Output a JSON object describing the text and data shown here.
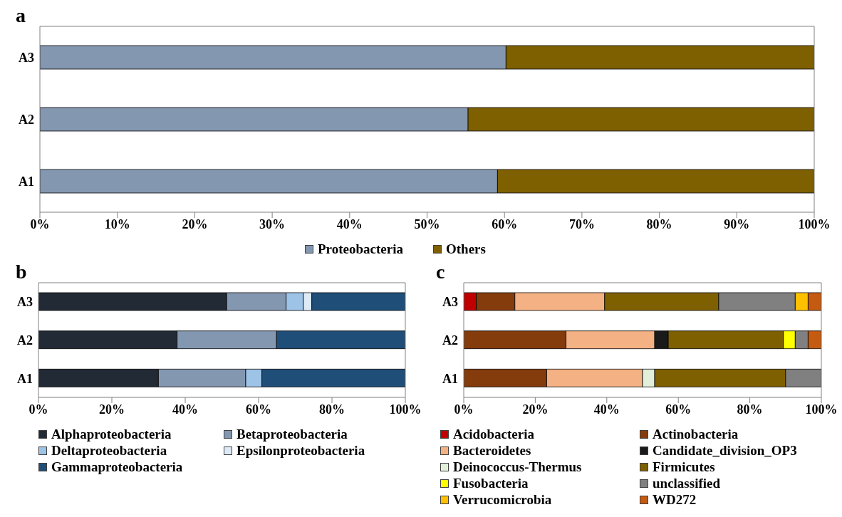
{
  "chart_data": [
    {
      "type": "bar",
      "title": "a",
      "orientation": "horizontal",
      "stacked": true,
      "categories": [
        "A3",
        "A2",
        "A1"
      ],
      "series": [
        {
          "name": "Proteobacteria",
          "color": "#8497b0",
          "values": [
            60.2,
            55.3,
            59.1
          ]
        },
        {
          "name": "Others",
          "color": "#7f6000",
          "values": [
            39.8,
            44.7,
            40.9
          ]
        }
      ],
      "xlim": [
        0,
        100
      ],
      "xticks": [
        {
          "value": 0,
          "label": "0%"
        },
        {
          "value": 10,
          "label": "10%"
        },
        {
          "value": 20,
          "label": "20%"
        },
        {
          "value": 30,
          "label": "30%"
        },
        {
          "value": 40,
          "label": "40%"
        },
        {
          "value": 50,
          "label": "50%"
        },
        {
          "value": 60,
          "label": "60%"
        },
        {
          "value": 70,
          "label": "70%"
        },
        {
          "value": 80,
          "label": "80%"
        },
        {
          "value": 90,
          "label": "90%"
        },
        {
          "value": 100,
          "label": "100%"
        }
      ],
      "grid": false,
      "legend": "bottom"
    },
    {
      "type": "bar",
      "title": "b",
      "orientation": "horizontal",
      "stacked": true,
      "categories": [
        "A3",
        "A2",
        "A1"
      ],
      "series": [
        {
          "name": "Alphaproteobacteria",
          "color": "#222a35",
          "values": [
            51.3,
            37.8,
            32.7
          ]
        },
        {
          "name": "Betaproteobacteria",
          "color": "#8497b0",
          "values": [
            16.2,
            27.1,
            23.8
          ]
        },
        {
          "name": "Deltaproteobacteria",
          "color": "#9dc3e6",
          "values": [
            4.7,
            0,
            4.4
          ]
        },
        {
          "name": "Epsilonproteobacteria",
          "color": "#deebf7",
          "values": [
            2.3,
            0,
            0
          ]
        },
        {
          "name": "Gammaproteobacteria",
          "color": "#1f4e79",
          "values": [
            25.5,
            35.1,
            39.1
          ]
        }
      ],
      "xlim": [
        0,
        100
      ],
      "xticks": [
        {
          "value": 0,
          "label": "0%"
        },
        {
          "value": 20,
          "label": "20%"
        },
        {
          "value": 40,
          "label": "40%"
        },
        {
          "value": 60,
          "label": "60%"
        },
        {
          "value": 80,
          "label": "80%"
        },
        {
          "value": 100,
          "label": "100%"
        }
      ],
      "grid": false,
      "legend": "bottom"
    },
    {
      "type": "bar",
      "title": "c",
      "orientation": "horizontal",
      "stacked": true,
      "categories": [
        "A3",
        "A2",
        "A1"
      ],
      "series": [
        {
          "name": "Acidobacteria",
          "color": "#c00000",
          "values": [
            3.5,
            0,
            0
          ]
        },
        {
          "name": "Actinobacteria",
          "color": "#843c0c",
          "values": [
            10.8,
            28.6,
            23.2
          ]
        },
        {
          "name": "Bacteroidetes",
          "color": "#f4b183",
          "values": [
            25.1,
            24.8,
            26.8
          ]
        },
        {
          "name": "Candidate_division_OP3",
          "color": "#1a1a1a",
          "values": [
            0,
            3.8,
            0
          ]
        },
        {
          "name": "Deinococcus-Thermus",
          "color": "#e2f0d9",
          "values": [
            0,
            0,
            3.4
          ]
        },
        {
          "name": "Firmicutes",
          "color": "#7f6000",
          "values": [
            31.9,
            32.2,
            36.6
          ]
        },
        {
          "name": "Fusobacteria",
          "color": "#ffff00",
          "values": [
            0,
            3.3,
            0
          ]
        },
        {
          "name": "unclassified",
          "color": "#808080",
          "values": [
            21.4,
            3.6,
            10.0
          ]
        },
        {
          "name": "Verrucomicrobia",
          "color": "#ffc000",
          "values": [
            3.6,
            0,
            0
          ]
        },
        {
          "name": "WD272",
          "color": "#c55a11",
          "values": [
            3.7,
            3.7,
            0
          ]
        }
      ],
      "xlim": [
        0,
        100
      ],
      "xticks": [
        {
          "value": 0,
          "label": "0%"
        },
        {
          "value": 20,
          "label": "20%"
        },
        {
          "value": 40,
          "label": "40%"
        },
        {
          "value": 60,
          "label": "60%"
        },
        {
          "value": 80,
          "label": "80%"
        },
        {
          "value": 100,
          "label": "100%"
        }
      ],
      "grid": false,
      "legend": "bottom"
    }
  ]
}
